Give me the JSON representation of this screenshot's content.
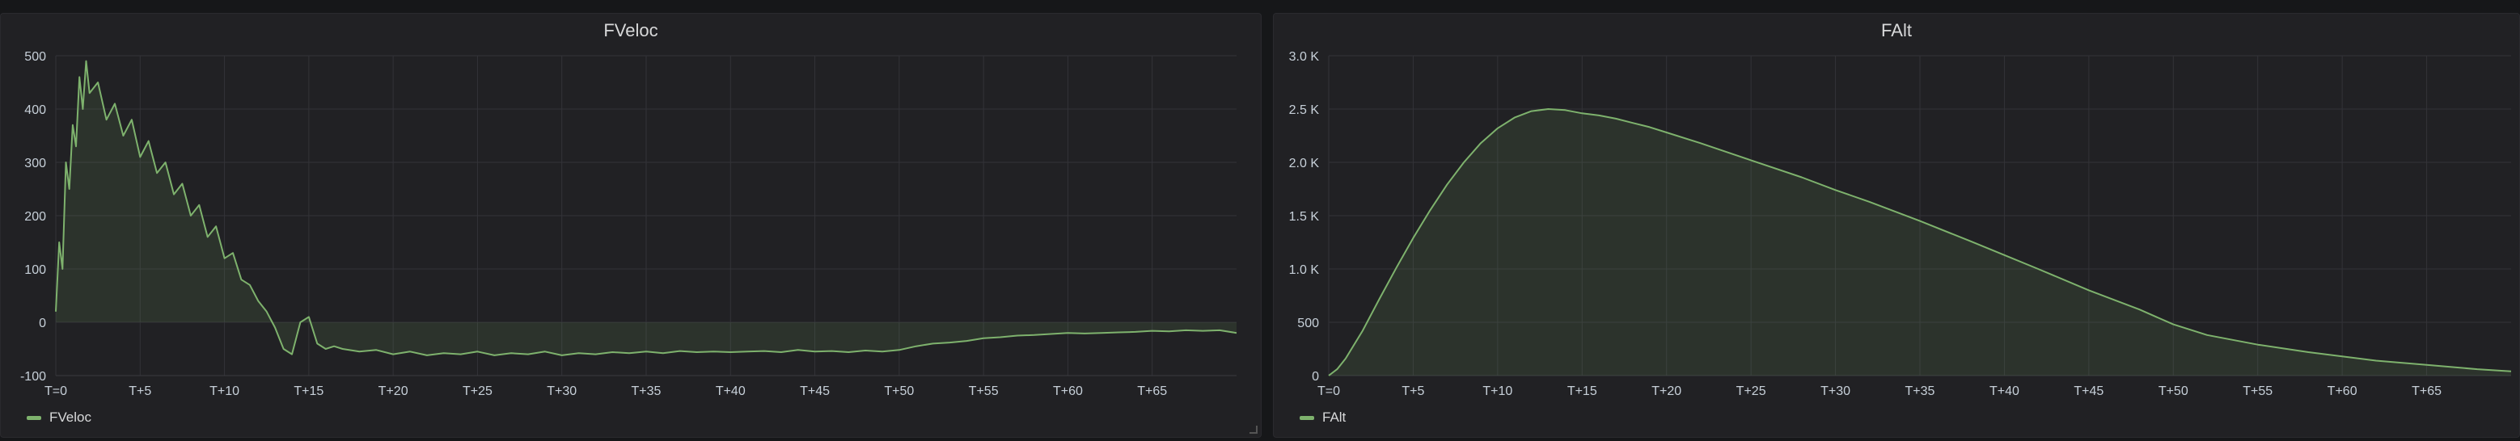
{
  "chart_data": [
    {
      "type": "area",
      "title": "FVeloc",
      "xlabel": "",
      "ylabel": "",
      "xlim": [
        0,
        70
      ],
      "ylim": [
        -100,
        500
      ],
      "y_ticks": [
        -100,
        0,
        100,
        200,
        300,
        400,
        500
      ],
      "y_tick_labels": [
        "-100",
        "0",
        "100",
        "200",
        "300",
        "400",
        "500"
      ],
      "x_ticks": [
        0,
        5,
        10,
        15,
        20,
        25,
        30,
        35,
        40,
        45,
        50,
        55,
        60,
        65
      ],
      "x_tick_labels": [
        "T=0",
        "T+5",
        "T+10",
        "T+15",
        "T+20",
        "T+25",
        "T+30",
        "T+35",
        "T+40",
        "T+45",
        "T+50",
        "T+55",
        "T+60",
        "T+65"
      ],
      "grid": true,
      "legend_position": "bottom-left",
      "color": "#7eb26d",
      "series": [
        {
          "name": "FVeloc",
          "x": [
            0,
            0.2,
            0.4,
            0.6,
            0.8,
            1.0,
            1.2,
            1.4,
            1.6,
            1.8,
            2.0,
            2.5,
            3.0,
            3.5,
            4.0,
            4.5,
            5.0,
            5.5,
            6.0,
            6.5,
            7.0,
            7.5,
            8.0,
            8.5,
            9.0,
            9.5,
            10.0,
            10.5,
            11.0,
            11.5,
            12.0,
            12.5,
            13.0,
            13.5,
            14.0,
            14.5,
            15.0,
            15.5,
            16.0,
            16.5,
            17.0,
            18.0,
            19.0,
            20.0,
            21.0,
            22.0,
            23.0,
            24.0,
            25.0,
            26.0,
            27.0,
            28.0,
            29.0,
            30.0,
            31.0,
            32.0,
            33.0,
            34.0,
            35.0,
            36.0,
            37.0,
            38.0,
            39.0,
            40.0,
            41.0,
            42.0,
            43.0,
            44.0,
            45.0,
            46.0,
            47.0,
            48.0,
            49.0,
            50.0,
            51.0,
            52.0,
            53.0,
            54.0,
            55.0,
            56.0,
            57.0,
            58.0,
            59.0,
            60.0,
            61.0,
            62.0,
            63.0,
            64.0,
            65.0,
            66.0,
            67.0,
            68.0,
            69.0,
            70.0
          ],
          "values": [
            20,
            150,
            100,
            300,
            250,
            370,
            330,
            460,
            400,
            490,
            430,
            450,
            380,
            410,
            350,
            380,
            310,
            340,
            280,
            300,
            240,
            260,
            200,
            220,
            160,
            180,
            120,
            130,
            80,
            70,
            40,
            20,
            -10,
            -50,
            -60,
            0,
            10,
            -40,
            -50,
            -45,
            -50,
            -55,
            -52,
            -60,
            -55,
            -62,
            -58,
            -60,
            -55,
            -62,
            -58,
            -60,
            -55,
            -62,
            -58,
            -60,
            -56,
            -58,
            -55,
            -58,
            -54,
            -56,
            -55,
            -56,
            -55,
            -54,
            -56,
            -52,
            -55,
            -54,
            -56,
            -53,
            -55,
            -52,
            -45,
            -40,
            -38,
            -35,
            -30,
            -28,
            -25,
            -24,
            -22,
            -20,
            -21,
            -20,
            -19,
            -18,
            -16,
            -17,
            -15,
            -16,
            -15,
            -20
          ]
        }
      ]
    },
    {
      "type": "area",
      "title": "FAlt",
      "xlabel": "",
      "ylabel": "",
      "xlim": [
        0,
        70
      ],
      "ylim": [
        0,
        3000
      ],
      "y_ticks": [
        0,
        500,
        1000,
        1500,
        2000,
        2500,
        3000
      ],
      "y_tick_labels": [
        "0",
        "500",
        "1.0 K",
        "1.5 K",
        "2.0 K",
        "2.5 K",
        "3.0 K"
      ],
      "x_ticks": [
        0,
        5,
        10,
        15,
        20,
        25,
        30,
        35,
        40,
        45,
        50,
        55,
        60,
        65
      ],
      "x_tick_labels": [
        "T=0",
        "T+5",
        "T+10",
        "T+15",
        "T+20",
        "T+25",
        "T+30",
        "T+35",
        "T+40",
        "T+45",
        "T+50",
        "T+55",
        "T+60",
        "T+65"
      ],
      "grid": true,
      "legend_position": "bottom-left",
      "color": "#7eb26d",
      "series": [
        {
          "name": "FAlt",
          "x": [
            0,
            0.5,
            1,
            2,
            3,
            4,
            5,
            6,
            7,
            8,
            9,
            10,
            11,
            12,
            13,
            14,
            15,
            16,
            17,
            18,
            19,
            20,
            22,
            25,
            28,
            30,
            32,
            35,
            38,
            40,
            42,
            45,
            48,
            50,
            52,
            55,
            58,
            60,
            62,
            65,
            68,
            70
          ],
          "values": [
            0,
            60,
            160,
            420,
            720,
            1010,
            1290,
            1550,
            1790,
            2000,
            2180,
            2320,
            2420,
            2480,
            2500,
            2490,
            2460,
            2440,
            2410,
            2370,
            2330,
            2280,
            2180,
            2020,
            1860,
            1740,
            1630,
            1450,
            1260,
            1130,
            1000,
            800,
            620,
            480,
            380,
            290,
            220,
            180,
            140,
            100,
            60,
            40
          ]
        }
      ]
    }
  ]
}
